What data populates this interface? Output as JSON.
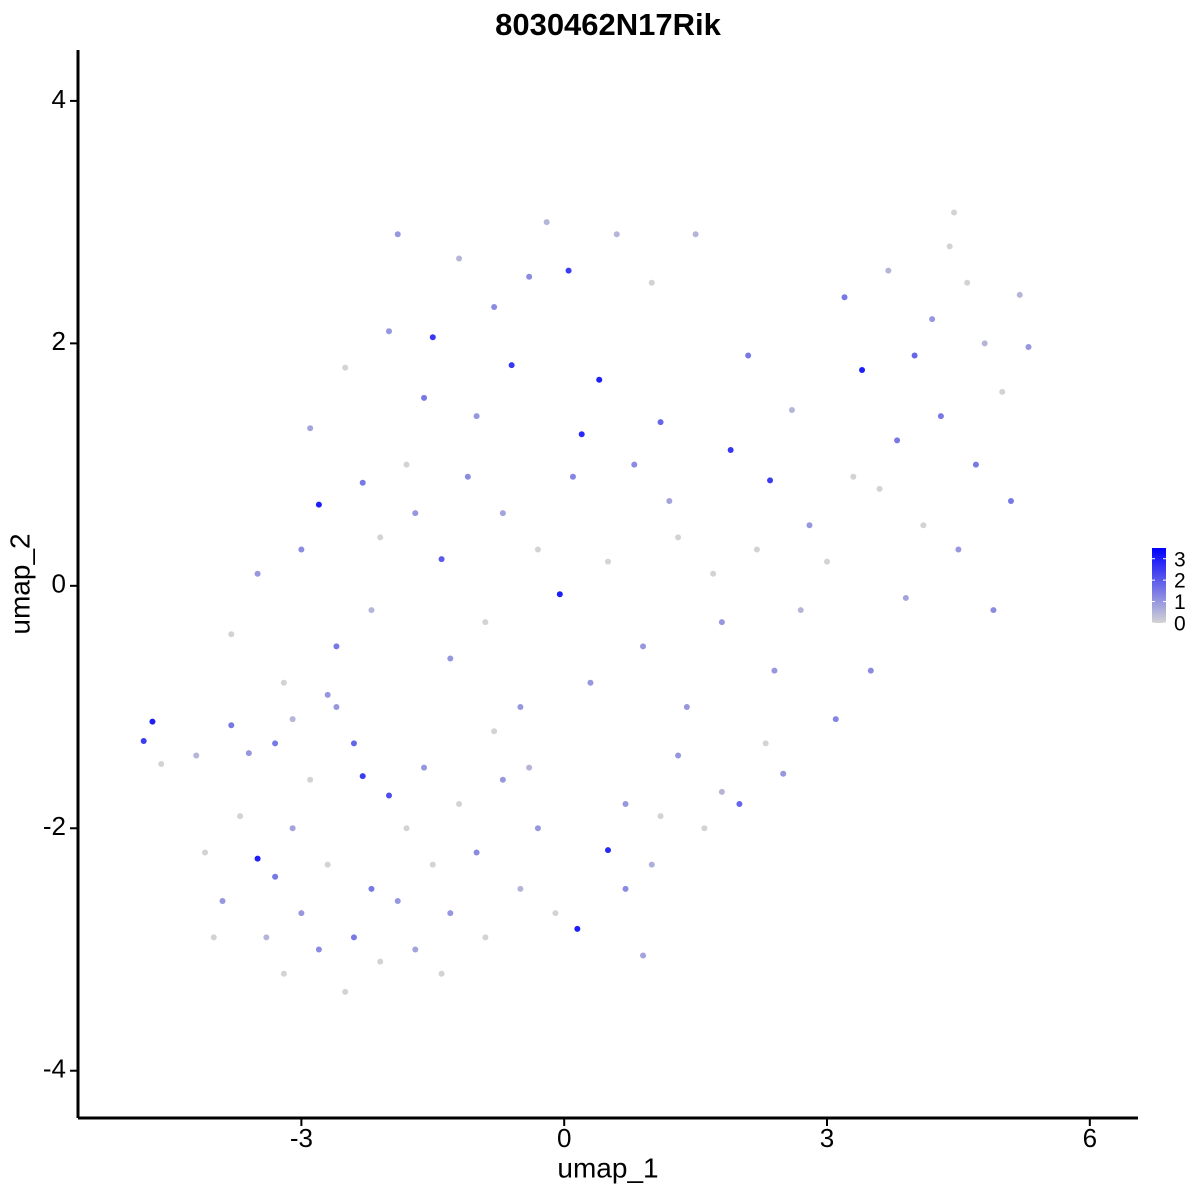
{
  "chart_data": {
    "type": "scatter",
    "title": "8030462N17Rik",
    "x_label": "umap_1",
    "y_label": "umap_2",
    "xlim": [
      -5.55,
      6.55
    ],
    "ylim": [
      -4.39,
      4.42
    ],
    "xticks": [
      -3,
      0,
      3,
      6
    ],
    "yticks": [
      -4,
      -2,
      0,
      2,
      4
    ],
    "colorbar": {
      "lim": [
        0,
        3.5
      ],
      "ticks": [
        0,
        1,
        2,
        3
      ],
      "low": "#d3d3d3",
      "high": "#0000ff"
    },
    "x": [
      -4.8,
      -4.7,
      -4.6,
      -4.2,
      -4.1,
      -3.9,
      -3.8,
      -3.6,
      -3.5,
      -3.4,
      -3.3,
      -3.2,
      -3.1,
      -3.0,
      -2.9,
      -2.8,
      -2.7,
      -2.6,
      -2.5,
      -2.4,
      -2.3,
      -2.2,
      -2.1,
      -2.0,
      -1.9,
      -1.8,
      -1.7,
      -1.6,
      -1.5,
      -1.4,
      -1.3,
      -1.2,
      -1.0,
      -0.9,
      -0.7,
      -0.5,
      -0.3,
      -0.1,
      0.15,
      0.5,
      0.7,
      0.9,
      1.1,
      1.3,
      1.6,
      1.8,
      2.0,
      2.3,
      2.5,
      -3.8,
      -3.5,
      -3.2,
      -3.0,
      -2.9,
      -2.8,
      -2.6,
      -2.5,
      -2.3,
      -2.2,
      -2.0,
      -1.9,
      -1.8,
      -1.6,
      -1.5,
      -1.4,
      -1.3,
      -1.2,
      -1.0,
      -0.9,
      -0.8,
      -0.7,
      -0.6,
      -0.5,
      -0.4,
      -0.3,
      -0.2,
      -0.05,
      0.05,
      0.2,
      0.3,
      0.4,
      0.5,
      0.6,
      0.8,
      0.9,
      1.0,
      1.1,
      1.3,
      1.4,
      1.5,
      1.7,
      1.9,
      2.1,
      2.35,
      2.4,
      2.6,
      2.8,
      3.0,
      3.2,
      3.4,
      3.5,
      3.6,
      3.7,
      3.8,
      3.9,
      4.0,
      4.1,
      4.2,
      4.3,
      4.4,
      4.5,
      4.6,
      4.7,
      4.8,
      4.9,
      5.0,
      5.1,
      5.2,
      5.3,
      4.45,
      -3.7,
      -3.3,
      -2.7,
      -2.1,
      -1.1,
      -0.4,
      0.7,
      1.2,
      2.2,
      3.1,
      -4.0,
      -3.1,
      -2.4,
      -1.7,
      -0.8,
      0.1,
      1.0,
      1.8,
      2.7,
      3.3
    ],
    "y": [
      -1.28,
      -1.12,
      -1.47,
      -1.4,
      -2.2,
      -2.6,
      -1.15,
      -1.38,
      -2.25,
      -2.9,
      -1.3,
      -3.2,
      -2.0,
      -2.7,
      -1.6,
      -3.0,
      -2.3,
      -1.0,
      -3.35,
      -2.9,
      -1.57,
      -2.5,
      -3.1,
      -1.73,
      -2.6,
      -2.0,
      -3.0,
      -1.5,
      -2.3,
      -3.2,
      -2.7,
      -1.8,
      -2.2,
      -2.9,
      -1.6,
      -2.5,
      -2.0,
      -2.7,
      -2.83,
      -2.18,
      -2.5,
      -3.05,
      -1.9,
      -1.4,
      -2.0,
      -1.7,
      -1.8,
      -1.3,
      -1.55,
      -0.4,
      0.1,
      -0.8,
      0.3,
      1.3,
      0.67,
      -0.5,
      1.8,
      0.85,
      -0.2,
      2.1,
      2.9,
      1.0,
      1.55,
      2.05,
      0.22,
      -0.6,
      2.7,
      1.4,
      -0.3,
      2.3,
      0.6,
      1.82,
      -1.0,
      2.55,
      0.3,
      3.0,
      -0.07,
      2.6,
      1.25,
      -0.8,
      1.7,
      0.2,
      2.9,
      1.0,
      -0.5,
      2.5,
      1.35,
      0.4,
      -1.0,
      2.9,
      0.1,
      1.12,
      1.9,
      0.87,
      -0.7,
      1.45,
      0.5,
      0.2,
      2.38,
      1.78,
      -0.7,
      0.8,
      2.6,
      1.2,
      -0.1,
      1.9,
      0.5,
      2.2,
      1.4,
      2.8,
      0.3,
      2.5,
      1.0,
      2.0,
      -0.2,
      1.6,
      0.7,
      2.4,
      1.97,
      3.08,
      -1.9,
      -2.4,
      -0.9,
      0.4,
      0.9,
      -1.5,
      -1.8,
      0.7,
      0.3,
      -1.1,
      -2.9,
      -1.1,
      -1.3,
      0.6,
      -1.2,
      0.9,
      -2.3,
      -0.3,
      -0.2,
      0.9
    ],
    "expression": [
      2.5,
      3,
      0,
      0.5,
      0,
      1,
      1.5,
      1,
      3,
      0.5,
      1.5,
      0,
      0.8,
      1,
      0,
      1.2,
      0,
      1,
      0,
      1.5,
      2.5,
      1.5,
      0,
      2.2,
      1,
      0,
      0.8,
      1,
      0,
      0,
      1,
      0,
      1.2,
      0,
      1,
      0.5,
      1,
      0,
      3,
      2.8,
      1.2,
      0.8,
      0,
      1,
      0,
      0.5,
      1.8,
      0,
      1,
      0,
      1,
      0,
      1.2,
      0.8,
      3,
      1.5,
      0,
      1.5,
      0.5,
      1,
      1,
      0,
      1.5,
      2.6,
      2,
      1,
      0.5,
      1,
      0,
      1.2,
      0.8,
      2.6,
      1,
      1.2,
      0,
      0.5,
      3,
      2.5,
      2.8,
      1,
      3,
      0,
      0.5,
      1.2,
      1,
      0,
      1.8,
      0,
      1,
      0.5,
      0,
      2.6,
      1.5,
      2.5,
      1,
      0.5,
      1,
      0,
      1.5,
      3,
      1.2,
      0,
      0.5,
      1.5,
      0.8,
      1.8,
      0,
      1,
      1.5,
      0,
      1,
      0,
      1.5,
      0.5,
      1.2,
      0,
      1.5,
      0.5,
      1,
      0,
      0,
      1.5,
      1,
      0,
      1.2,
      0.5,
      1,
      0.8,
      0,
      1.3,
      0,
      0.5,
      1.8,
      1,
      0,
      1.3,
      0.6,
      1,
      0.5,
      0
    ]
  }
}
